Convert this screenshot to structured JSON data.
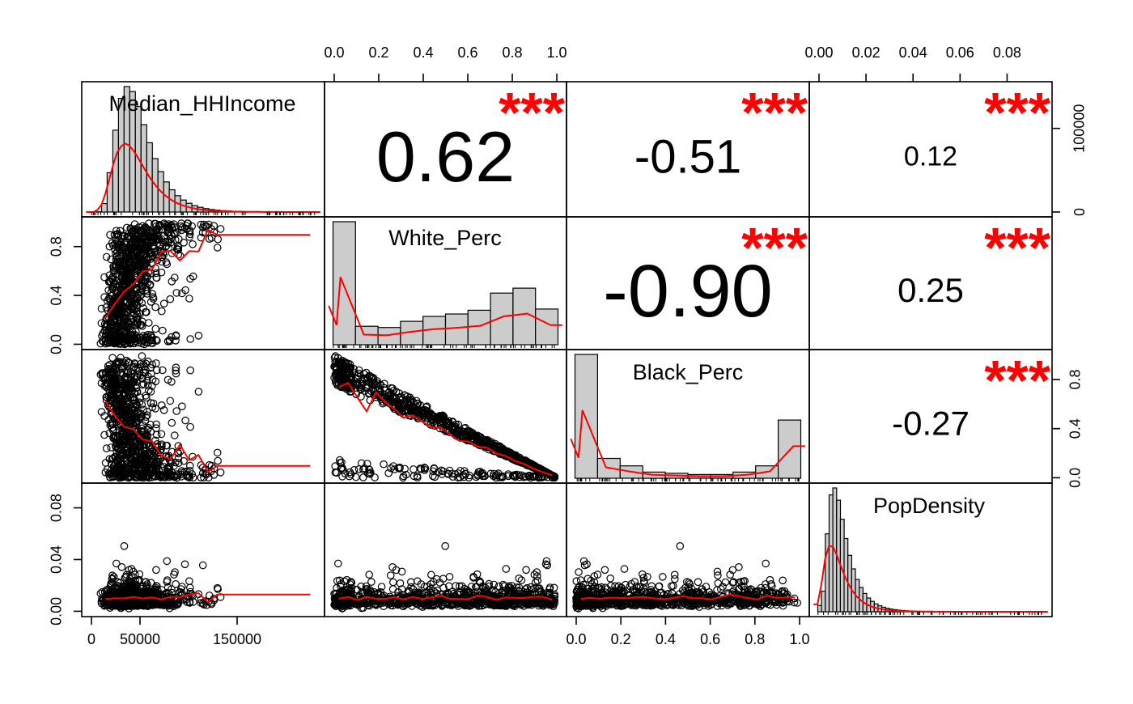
{
  "chart_data": {
    "type": "scatter_matrix",
    "title": "",
    "variables": [
      "Median_HHIncome",
      "White_Perc",
      "Black_Perc",
      "PopDensity"
    ],
    "axis_ranges": {
      "Median_HHIncome": [
        0,
        230000
      ],
      "White_Perc": [
        0.0,
        1.0
      ],
      "Black_Perc": [
        0.0,
        1.0
      ],
      "PopDensity": [
        0.0,
        0.095
      ]
    },
    "tick_labels": {
      "top_White_Perc": [
        "0.0",
        "0.2",
        "0.4",
        "0.6",
        "0.8",
        "1.0"
      ],
      "top_PopDensity": [
        "0.00",
        "0.02",
        "0.04",
        "0.06",
        "0.08"
      ],
      "bottom_Median_HHIncome": [
        "0",
        "50000",
        "150000"
      ],
      "bottom_Black_Perc": [
        "0.0",
        "0.2",
        "0.4",
        "0.6",
        "0.8",
        "1.0"
      ],
      "left_White_Perc": [
        "0.0",
        "0.4",
        "0.8"
      ],
      "left_PopDensity": [
        "0.00",
        "0.04",
        "0.08"
      ],
      "right_Median_HHIncome": [
        "0",
        "100000"
      ],
      "right_Black_Perc": [
        "0.0",
        "0.4",
        "0.8"
      ]
    },
    "correlations": [
      {
        "row": 0,
        "col": 1,
        "value": "0.62",
        "stars": "***"
      },
      {
        "row": 0,
        "col": 2,
        "value": "-0.51",
        "stars": "***"
      },
      {
        "row": 0,
        "col": 3,
        "value": "0.12",
        "stars": "***"
      },
      {
        "row": 1,
        "col": 2,
        "value": "-0.90",
        "stars": "***"
      },
      {
        "row": 1,
        "col": 3,
        "value": "0.25",
        "stars": "***"
      },
      {
        "row": 2,
        "col": 3,
        "value": "-0.27",
        "stars": "***"
      }
    ],
    "histograms": {
      "White_Perc": {
        "bins": [
          0.0,
          0.1,
          0.2,
          0.3,
          0.4,
          0.5,
          0.6,
          0.7,
          0.8,
          0.9,
          1.0
        ],
        "heights": [
          1.0,
          0.15,
          0.14,
          0.19,
          0.23,
          0.25,
          0.28,
          0.42,
          0.46,
          0.29
        ]
      },
      "Black_Perc": {
        "bins": [
          0.0,
          0.1,
          0.2,
          0.3,
          0.4,
          0.5,
          0.6,
          0.7,
          0.8,
          0.9,
          1.0
        ],
        "heights": [
          1.0,
          0.16,
          0.1,
          0.05,
          0.04,
          0.03,
          0.03,
          0.05,
          0.1,
          0.47
        ]
      }
    },
    "colors": {
      "smooth": "#ff0000",
      "stars": "#ff0000",
      "hist_fill": "#cccccc",
      "points": "#000000"
    }
  }
}
